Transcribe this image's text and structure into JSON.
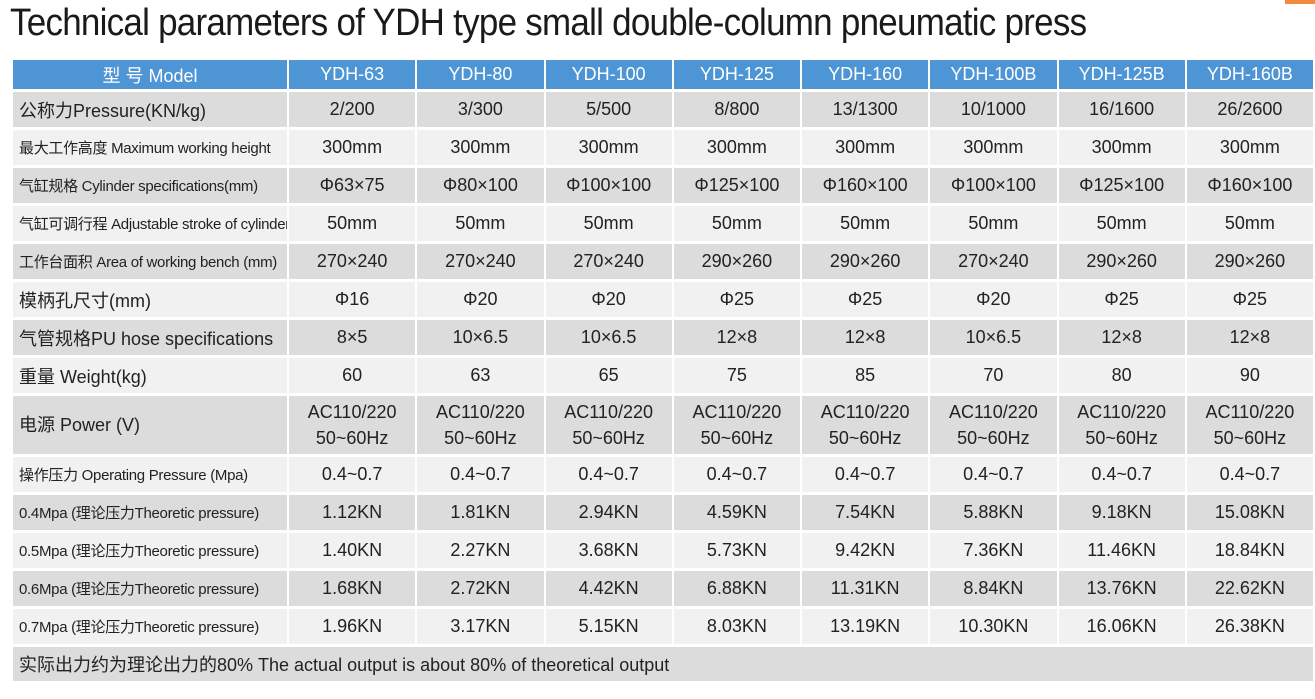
{
  "title": "Technical parameters of YDH type small double-column pneumatic press",
  "header": {
    "model_label": "型 号 Model",
    "models": [
      "YDH-63",
      "YDH-80",
      "YDH-100",
      "YDH-125",
      "YDH-160",
      "YDH-100B",
      "YDH-125B",
      "YDH-160B"
    ]
  },
  "rows": [
    {
      "label": "公称力Pressure(KN/kg)",
      "values": [
        "2/200",
        "3/300",
        "5/500",
        "8/800",
        "13/1300",
        "10/1000",
        "16/1600",
        "26/2600"
      ]
    },
    {
      "label": "最大工作高度 Maximum working height",
      "values": [
        "300mm",
        "300mm",
        "300mm",
        "300mm",
        "300mm",
        "300mm",
        "300mm",
        "300mm"
      ]
    },
    {
      "label": "气缸规格 Cylinder specifications(mm)",
      "values": [
        "Φ63×75",
        "Φ80×100",
        "Φ100×100",
        "Φ125×100",
        "Φ160×100",
        "Φ100×100",
        "Φ125×100",
        "Φ160×100"
      ]
    },
    {
      "label": "气缸可调行程 Adjustable stroke of cylinder",
      "values": [
        "50mm",
        "50mm",
        "50mm",
        "50mm",
        "50mm",
        "50mm",
        "50mm",
        "50mm"
      ]
    },
    {
      "label": "工作台面积 Area of working bench (mm)",
      "values": [
        "270×240",
        "270×240",
        "270×240",
        "290×260",
        "290×260",
        "270×240",
        "290×260",
        "290×260"
      ]
    },
    {
      "label": "模柄孔尺寸(mm)",
      "values": [
        "Φ16",
        "Φ20",
        "Φ20",
        "Φ25",
        "Φ25",
        "Φ20",
        "Φ25",
        "Φ25"
      ]
    },
    {
      "label": "气管规格PU hose specifications",
      "values": [
        "8×5",
        "10×6.5",
        "10×6.5",
        "12×8",
        "12×8",
        "10×6.5",
        "12×8",
        "12×8"
      ]
    },
    {
      "label": "重量 Weight(kg)",
      "values": [
        "60",
        "63",
        "65",
        "75",
        "85",
        "70",
        "80",
        "90"
      ]
    },
    {
      "label": "电源 Power (V)",
      "values": [
        "AC110/220",
        "AC110/220",
        "AC110/220",
        "AC110/220",
        "AC110/220",
        "AC110/220",
        "AC110/220",
        "AC110/220"
      ],
      "values2": [
        "50~60Hz",
        "50~60Hz",
        "50~60Hz",
        "50~60Hz",
        "50~60Hz",
        "50~60Hz",
        "50~60Hz",
        "50~60Hz"
      ]
    },
    {
      "label": "操作压力 Operating Pressure (Mpa)",
      "values": [
        "0.4~0.7",
        "0.4~0.7",
        "0.4~0.7",
        "0.4~0.7",
        "0.4~0.7",
        "0.4~0.7",
        "0.4~0.7",
        "0.4~0.7"
      ]
    },
    {
      "label": "0.4Mpa (理论压力Theoretic pressure)",
      "values": [
        "1.12KN",
        "1.81KN",
        "2.94KN",
        "4.59KN",
        "7.54KN",
        "5.88KN",
        "9.18KN",
        "15.08KN"
      ]
    },
    {
      "label": "0.5Mpa (理论压力Theoretic pressure)",
      "values": [
        "1.40KN",
        "2.27KN",
        "3.68KN",
        "5.73KN",
        "9.42KN",
        "7.36KN",
        "11.46KN",
        "18.84KN"
      ]
    },
    {
      "label": "0.6Mpa (理论压力Theoretic pressure)",
      "values": [
        "1.68KN",
        "2.72KN",
        "4.42KN",
        "6.88KN",
        "11.31KN",
        "8.84KN",
        "13.76KN",
        "22.62KN"
      ]
    },
    {
      "label": "0.7Mpa (理论压力Theoretic pressure)",
      "values": [
        "1.96KN",
        "3.17KN",
        "5.15KN",
        "8.03KN",
        "13.19KN",
        "10.30KN",
        "16.06KN",
        "26.38KN"
      ]
    }
  ],
  "footer": "实际出力约为理论出力的80% The actual output is about 80% of theoretical output",
  "colors": {
    "header_bg": "#4e95d6",
    "row_dark": "#dcdcdc",
    "row_light": "#f1f1f1",
    "accent": "#f08a3c"
  }
}
